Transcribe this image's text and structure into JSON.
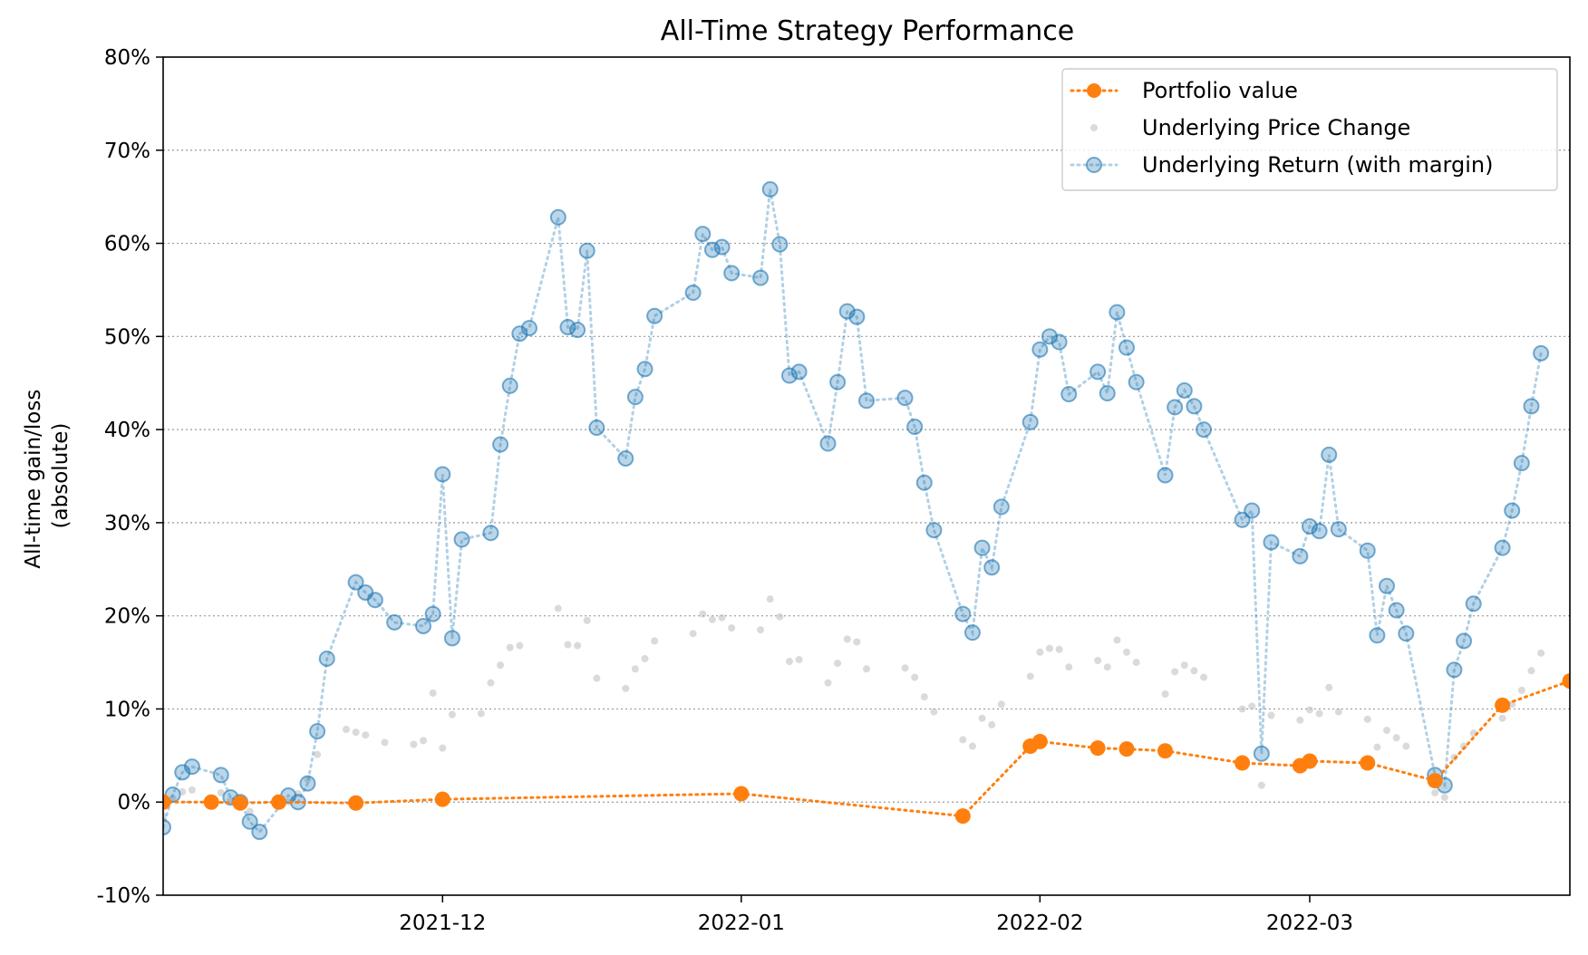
{
  "chart_data": {
    "type": "line",
    "title": "All-Time Strategy Performance",
    "xlabel": "",
    "ylabel": [
      "All-time gain/loss",
      "(absolute)"
    ],
    "x_range": [
      "2021-11-02",
      "2022-03-28"
    ],
    "ylim": [
      -10,
      80
    ],
    "y_ticks": [
      -10,
      0,
      10,
      20,
      30,
      40,
      50,
      60,
      70,
      80
    ],
    "y_tick_labels": [
      "-10%",
      "0%",
      "10%",
      "20%",
      "30%",
      "40%",
      "50%",
      "60%",
      "70%",
      "80%"
    ],
    "y_tick_colors": {
      "-10": "#d62728"
    },
    "x_ticks": [
      {
        "date": "2021-12-01",
        "label": "2021-12"
      },
      {
        "date": "2022-01-01",
        "label": "2022-01"
      },
      {
        "date": "2022-02-01",
        "label": "2022-02"
      },
      {
        "date": "2022-03-01",
        "label": "2022-03"
      }
    ],
    "grid": "horizontal dotted",
    "legend_position": "top-right",
    "series": [
      {
        "name": "Portfolio value",
        "color": "#ff7f0e",
        "style": "dotted-line-markers",
        "points": [
          [
            "2021-11-02",
            0.0
          ],
          [
            "2021-11-07",
            0.0
          ],
          [
            "2021-11-10",
            -0.1
          ],
          [
            "2021-11-14",
            0.0
          ],
          [
            "2021-11-22",
            -0.1
          ],
          [
            "2021-12-01",
            0.3
          ],
          [
            "2022-01-01",
            0.9
          ],
          [
            "2022-01-24",
            -1.5
          ],
          [
            "2022-01-31",
            6.0
          ],
          [
            "2022-02-01",
            6.5
          ],
          [
            "2022-02-07",
            5.8
          ],
          [
            "2022-02-10",
            5.7
          ],
          [
            "2022-02-14",
            5.5
          ],
          [
            "2022-02-22",
            4.2
          ],
          [
            "2022-02-28",
            3.9
          ],
          [
            "2022-03-01",
            4.4
          ],
          [
            "2022-03-07",
            4.2
          ],
          [
            "2022-03-14",
            2.3
          ],
          [
            "2022-03-21",
            10.4
          ],
          [
            "2022-03-28",
            13.0
          ]
        ]
      },
      {
        "name": "Underlying Price Change",
        "color": "#bbbbbb",
        "style": "markers",
        "points": [
          [
            "2021-11-02",
            -1.5
          ],
          [
            "2021-11-03",
            0.4
          ],
          [
            "2021-11-04",
            1.1
          ],
          [
            "2021-11-05",
            1.3
          ],
          [
            "2021-11-08",
            1.0
          ],
          [
            "2021-11-09",
            0.2
          ],
          [
            "2021-11-10",
            -0.5
          ],
          [
            "2021-11-11",
            -1.0
          ],
          [
            "2021-11-14",
            0.1
          ],
          [
            "2021-11-15",
            0.0
          ],
          [
            "2021-11-16",
            0.9
          ],
          [
            "2021-11-17",
            2.4
          ],
          [
            "2021-11-18",
            5.1
          ],
          [
            "2021-11-21",
            7.8
          ],
          [
            "2021-11-22",
            7.5
          ],
          [
            "2021-11-23",
            7.2
          ],
          [
            "2021-11-25",
            6.4
          ],
          [
            "2021-11-28",
            6.2
          ],
          [
            "2021-11-29",
            6.6
          ],
          [
            "2021-11-30",
            11.7
          ],
          [
            "2021-12-01",
            5.8
          ],
          [
            "2021-12-02",
            9.4
          ],
          [
            "2021-12-05",
            9.5
          ],
          [
            "2021-12-06",
            12.8
          ],
          [
            "2021-12-07",
            14.7
          ],
          [
            "2021-12-08",
            16.6
          ],
          [
            "2021-12-09",
            16.8
          ],
          [
            "2021-12-13",
            20.8
          ],
          [
            "2021-12-14",
            16.9
          ],
          [
            "2021-12-15",
            16.8
          ],
          [
            "2021-12-16",
            19.5
          ],
          [
            "2021-12-17",
            13.3
          ],
          [
            "2021-12-20",
            12.2
          ],
          [
            "2021-12-21",
            14.3
          ],
          [
            "2021-12-22",
            15.4
          ],
          [
            "2021-12-23",
            17.3
          ],
          [
            "2021-12-27",
            18.1
          ],
          [
            "2021-12-28",
            20.2
          ],
          [
            "2021-12-29",
            19.6
          ],
          [
            "2021-12-30",
            19.8
          ],
          [
            "2021-12-31",
            18.7
          ],
          [
            "2022-01-03",
            18.5
          ],
          [
            "2022-01-04",
            21.8
          ],
          [
            "2022-01-05",
            19.9
          ],
          [
            "2022-01-06",
            15.1
          ],
          [
            "2022-01-07",
            15.3
          ],
          [
            "2022-01-10",
            12.8
          ],
          [
            "2022-01-11",
            14.9
          ],
          [
            "2022-01-12",
            17.5
          ],
          [
            "2022-01-13",
            17.2
          ],
          [
            "2022-01-14",
            14.3
          ],
          [
            "2022-01-18",
            14.4
          ],
          [
            "2022-01-19",
            13.4
          ],
          [
            "2022-01-20",
            11.3
          ],
          [
            "2022-01-21",
            9.7
          ],
          [
            "2022-01-24",
            6.7
          ],
          [
            "2022-01-25",
            6.0
          ],
          [
            "2022-01-26",
            9.0
          ],
          [
            "2022-01-27",
            8.3
          ],
          [
            "2022-01-28",
            10.5
          ],
          [
            "2022-01-31",
            13.5
          ],
          [
            "2022-02-01",
            16.1
          ],
          [
            "2022-02-02",
            16.5
          ],
          [
            "2022-02-03",
            16.4
          ],
          [
            "2022-02-04",
            14.5
          ],
          [
            "2022-02-07",
            15.2
          ],
          [
            "2022-02-08",
            14.5
          ],
          [
            "2022-02-09",
            17.4
          ],
          [
            "2022-02-10",
            16.1
          ],
          [
            "2022-02-11",
            15.0
          ],
          [
            "2022-02-14",
            11.6
          ],
          [
            "2022-02-15",
            14.0
          ],
          [
            "2022-02-16",
            14.7
          ],
          [
            "2022-02-17",
            14.1
          ],
          [
            "2022-02-18",
            13.4
          ],
          [
            "2022-02-22",
            10.0
          ],
          [
            "2022-02-23",
            10.3
          ],
          [
            "2022-02-24",
            1.8
          ],
          [
            "2022-02-25",
            9.3
          ],
          [
            "2022-02-28",
            8.8
          ],
          [
            "2022-03-01",
            9.9
          ],
          [
            "2022-03-02",
            9.5
          ],
          [
            "2022-03-03",
            12.3
          ],
          [
            "2022-03-04",
            9.7
          ],
          [
            "2022-03-07",
            8.9
          ],
          [
            "2022-03-08",
            5.9
          ],
          [
            "2022-03-09",
            7.7
          ],
          [
            "2022-03-10",
            6.9
          ],
          [
            "2022-03-11",
            6.0
          ],
          [
            "2022-03-14",
            1.0
          ],
          [
            "2022-03-15",
            0.5
          ],
          [
            "2022-03-16",
            4.8
          ],
          [
            "2022-03-17",
            6.0
          ],
          [
            "2022-03-18",
            7.4
          ],
          [
            "2022-03-21",
            9.0
          ],
          [
            "2022-03-22",
            10.5
          ],
          [
            "2022-03-23",
            12.0
          ],
          [
            "2022-03-24",
            14.1
          ],
          [
            "2022-03-25",
            16.0
          ]
        ]
      },
      {
        "name": "Underlying Return (with margin)",
        "color": "#1f77b4",
        "style": "dotted-line-markers",
        "points": [
          [
            "2021-11-02",
            -2.7
          ],
          [
            "2021-11-03",
            0.8
          ],
          [
            "2021-11-04",
            3.2
          ],
          [
            "2021-11-05",
            3.8
          ],
          [
            "2021-11-08",
            2.9
          ],
          [
            "2021-11-09",
            0.5
          ],
          [
            "2021-11-10",
            0.0
          ],
          [
            "2021-11-11",
            -2.1
          ],
          [
            "2021-11-12",
            -3.2
          ],
          [
            "2021-11-15",
            0.7
          ],
          [
            "2021-11-16",
            0.0
          ],
          [
            "2021-11-17",
            2.0
          ],
          [
            "2021-11-18",
            7.6
          ],
          [
            "2021-11-19",
            15.4
          ],
          [
            "2021-11-22",
            23.6
          ],
          [
            "2021-11-23",
            22.5
          ],
          [
            "2021-11-24",
            21.7
          ],
          [
            "2021-11-26",
            19.3
          ],
          [
            "2021-11-29",
            18.9
          ],
          [
            "2021-11-30",
            20.2
          ],
          [
            "2021-12-01",
            35.2
          ],
          [
            "2021-12-02",
            17.6
          ],
          [
            "2021-12-03",
            28.2
          ],
          [
            "2021-12-06",
            28.9
          ],
          [
            "2021-12-07",
            38.4
          ],
          [
            "2021-12-08",
            44.7
          ],
          [
            "2021-12-09",
            50.3
          ],
          [
            "2021-12-10",
            50.9
          ],
          [
            "2021-12-13",
            62.8
          ],
          [
            "2021-12-14",
            51.0
          ],
          [
            "2021-12-15",
            50.7
          ],
          [
            "2021-12-16",
            59.2
          ],
          [
            "2021-12-17",
            40.2
          ],
          [
            "2021-12-20",
            36.9
          ],
          [
            "2021-12-21",
            43.5
          ],
          [
            "2021-12-22",
            46.5
          ],
          [
            "2021-12-23",
            52.2
          ],
          [
            "2021-12-27",
            54.7
          ],
          [
            "2021-12-28",
            61.0
          ],
          [
            "2021-12-29",
            59.3
          ],
          [
            "2021-12-30",
            59.6
          ],
          [
            "2021-12-31",
            56.8
          ],
          [
            "2022-01-03",
            56.3
          ],
          [
            "2022-01-04",
            65.8
          ],
          [
            "2022-01-05",
            59.9
          ],
          [
            "2022-01-06",
            45.8
          ],
          [
            "2022-01-07",
            46.2
          ],
          [
            "2022-01-10",
            38.5
          ],
          [
            "2022-01-11",
            45.1
          ],
          [
            "2022-01-12",
            52.7
          ],
          [
            "2022-01-13",
            52.1
          ],
          [
            "2022-01-14",
            43.1
          ],
          [
            "2022-01-18",
            43.4
          ],
          [
            "2022-01-19",
            40.3
          ],
          [
            "2022-01-20",
            34.3
          ],
          [
            "2022-01-21",
            29.2
          ],
          [
            "2022-01-24",
            20.2
          ],
          [
            "2022-01-25",
            18.2
          ],
          [
            "2022-01-26",
            27.3
          ],
          [
            "2022-01-27",
            25.2
          ],
          [
            "2022-01-28",
            31.7
          ],
          [
            "2022-01-31",
            40.8
          ],
          [
            "2022-02-01",
            48.6
          ],
          [
            "2022-02-02",
            50.0
          ],
          [
            "2022-02-03",
            49.4
          ],
          [
            "2022-02-04",
            43.8
          ],
          [
            "2022-02-07",
            46.2
          ],
          [
            "2022-02-08",
            43.9
          ],
          [
            "2022-02-09",
            52.6
          ],
          [
            "2022-02-10",
            48.8
          ],
          [
            "2022-02-11",
            45.1
          ],
          [
            "2022-02-14",
            35.1
          ],
          [
            "2022-02-15",
            42.4
          ],
          [
            "2022-02-16",
            44.2
          ],
          [
            "2022-02-17",
            42.5
          ],
          [
            "2022-02-18",
            40.0
          ],
          [
            "2022-02-22",
            30.3
          ],
          [
            "2022-02-23",
            31.3
          ],
          [
            "2022-02-24",
            5.2
          ],
          [
            "2022-02-25",
            27.9
          ],
          [
            "2022-02-28",
            26.4
          ],
          [
            "2022-03-01",
            29.6
          ],
          [
            "2022-03-02",
            29.1
          ],
          [
            "2022-03-03",
            37.3
          ],
          [
            "2022-03-04",
            29.3
          ],
          [
            "2022-03-07",
            27.0
          ],
          [
            "2022-03-08",
            17.9
          ],
          [
            "2022-03-09",
            23.2
          ],
          [
            "2022-03-10",
            20.6
          ],
          [
            "2022-03-11",
            18.1
          ],
          [
            "2022-03-14",
            2.9
          ],
          [
            "2022-03-15",
            1.8
          ],
          [
            "2022-03-16",
            14.2
          ],
          [
            "2022-03-17",
            17.3
          ],
          [
            "2022-03-18",
            21.3
          ],
          [
            "2022-03-21",
            27.3
          ],
          [
            "2022-03-22",
            31.3
          ],
          [
            "2022-03-23",
            36.4
          ],
          [
            "2022-03-24",
            42.5
          ],
          [
            "2022-03-25",
            48.2
          ]
        ]
      }
    ]
  }
}
